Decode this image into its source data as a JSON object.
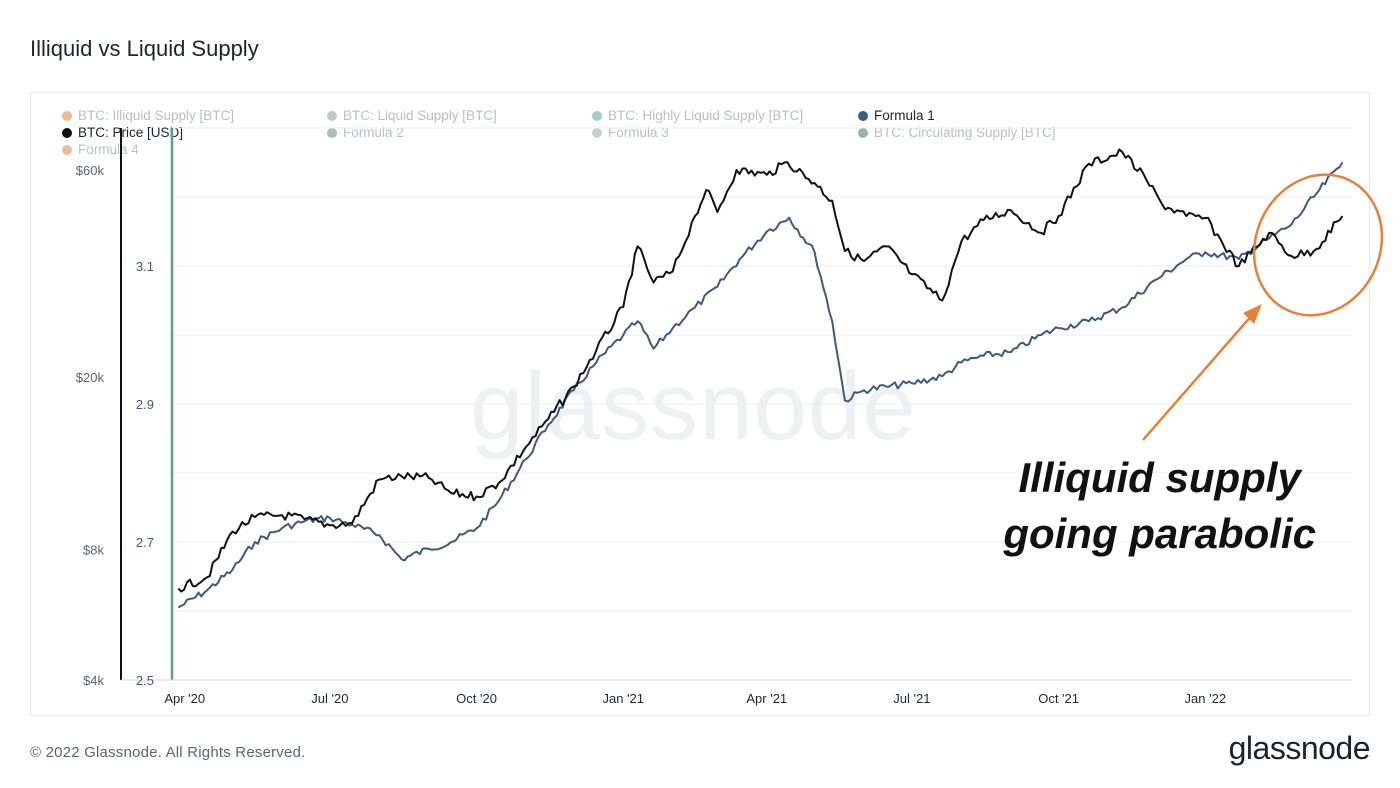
{
  "header": {
    "title": "Illiquid vs Liquid Supply"
  },
  "footer": {
    "copyright": "© 2022 Glassnode. All Rights Reserved.",
    "logo": "glassnode"
  },
  "watermark": "glassnode",
  "annotation": {
    "line1": "Illiquid supply",
    "line2": "going parabolic",
    "color": "#e5823a"
  },
  "legend": [
    {
      "label": "BTC: Illiquid Supply [BTC]",
      "color": "#e5823a",
      "active": false
    },
    {
      "label": "BTC: Liquid Supply [BTC]",
      "color": "#8a9aa0",
      "active": false
    },
    {
      "label": "BTC: Highly Liquid Supply [BTC]",
      "color": "#5f9e8f",
      "active": false
    },
    {
      "label": "Formula 1",
      "color": "#3d5a80",
      "active": true
    },
    {
      "label": "BTC: Price [USD]",
      "color": "#111111",
      "active": true
    },
    {
      "label": "Formula 2",
      "color": "#5b8a8f",
      "active": false
    },
    {
      "label": "Formula 3",
      "color": "#9aa7ad",
      "active": false
    },
    {
      "label": "BTC: Circulating Supply [BTC]",
      "color": "#4a6d79",
      "active": false
    },
    {
      "label": "Formula 4",
      "color": "#e5823a",
      "active": false
    }
  ],
  "chart_data": {
    "type": "line",
    "x_ticks": [
      "Apr '20",
      "Jul '20",
      "Oct '20",
      "Jan '21",
      "Apr '21",
      "Jul '21",
      "Oct '21",
      "Jan '22"
    ],
    "y_left": {
      "label": "",
      "ticks": [
        "$60k",
        "$20k",
        "$8k",
        "$4k"
      ],
      "scale": "log",
      "range": [
        4000,
        75000
      ]
    },
    "y_right_inner": {
      "label": "",
      "ticks": [
        "3.1",
        "2.9",
        "2.7",
        "2.5"
      ],
      "range": [
        2.5,
        3.3
      ]
    },
    "grid": true,
    "series": [
      {
        "name": "BTC: Price [USD]",
        "color": "#111111",
        "axis": "left",
        "x": [
          "2020-03-28",
          "2020-04-15",
          "2020-05-01",
          "2020-05-15",
          "2020-06-01",
          "2020-06-15",
          "2020-07-01",
          "2020-07-15",
          "2020-08-01",
          "2020-08-15",
          "2020-09-01",
          "2020-09-15",
          "2020-10-01",
          "2020-10-15",
          "2020-11-01",
          "2020-11-15",
          "2020-12-01",
          "2020-12-15",
          "2021-01-01",
          "2021-01-10",
          "2021-01-20",
          "2021-02-01",
          "2021-02-15",
          "2021-02-22",
          "2021-03-01",
          "2021-03-13",
          "2021-04-01",
          "2021-04-14",
          "2021-05-01",
          "2021-05-12",
          "2021-05-20",
          "2021-06-01",
          "2021-06-15",
          "2021-07-01",
          "2021-07-20",
          "2021-08-01",
          "2021-08-15",
          "2021-09-01",
          "2021-09-20",
          "2021-10-01",
          "2021-10-20",
          "2021-11-10",
          "2021-11-25",
          "2021-12-05",
          "2021-12-20",
          "2022-01-01",
          "2022-01-22",
          "2022-02-10",
          "2022-02-24",
          "2022-03-10",
          "2022-03-28"
        ],
        "y": [
          6500,
          6900,
          8800,
          9500,
          9600,
          9400,
          9100,
          9200,
          11600,
          11800,
          11700,
          10800,
          10600,
          11400,
          13800,
          16000,
          19000,
          23000,
          29000,
          40000,
          33000,
          35000,
          47000,
          54000,
          48000,
          60000,
          58500,
          62500,
          56000,
          51000,
          39000,
          37000,
          40000,
          34500,
          30000,
          41000,
          46000,
          48500,
          43000,
          47000,
          62000,
          66000,
          57000,
          50000,
          47000,
          46500,
          36000,
          43000,
          38000,
          39000,
          47000
        ]
      },
      {
        "name": "Formula 1",
        "color": "#3d5a80",
        "axis": "right",
        "x": [
          "2020-03-28",
          "2020-04-15",
          "2020-05-01",
          "2020-05-15",
          "2020-06-01",
          "2020-06-15",
          "2020-07-01",
          "2020-07-15",
          "2020-08-01",
          "2020-08-15",
          "2020-09-01",
          "2020-09-15",
          "2020-10-01",
          "2020-10-15",
          "2020-11-01",
          "2020-11-15",
          "2020-12-01",
          "2020-12-15",
          "2021-01-01",
          "2021-01-10",
          "2021-01-20",
          "2021-02-01",
          "2021-02-15",
          "2021-03-01",
          "2021-03-15",
          "2021-04-01",
          "2021-04-15",
          "2021-05-01",
          "2021-05-12",
          "2021-05-20",
          "2021-06-01",
          "2021-06-15",
          "2021-07-01",
          "2021-07-20",
          "2021-08-01",
          "2021-08-15",
          "2021-09-01",
          "2021-09-20",
          "2021-10-01",
          "2021-10-20",
          "2021-11-10",
          "2021-12-01",
          "2021-12-20",
          "2022-01-01",
          "2022-01-22",
          "2022-02-10",
          "2022-02-24",
          "2022-03-10",
          "2022-03-28"
        ],
        "y": [
          2.605,
          2.63,
          2.66,
          2.7,
          2.72,
          2.73,
          2.735,
          2.725,
          2.71,
          2.675,
          2.69,
          2.7,
          2.72,
          2.76,
          2.82,
          2.87,
          2.92,
          2.96,
          3.0,
          3.02,
          2.98,
          3.01,
          3.04,
          3.07,
          3.11,
          3.15,
          3.17,
          3.12,
          3.02,
          2.905,
          2.92,
          2.925,
          2.93,
          2.94,
          2.96,
          2.97,
          2.975,
          3.0,
          3.01,
          3.02,
          3.04,
          3.08,
          3.11,
          3.12,
          3.11,
          3.14,
          3.16,
          3.2,
          3.25
        ]
      }
    ]
  }
}
